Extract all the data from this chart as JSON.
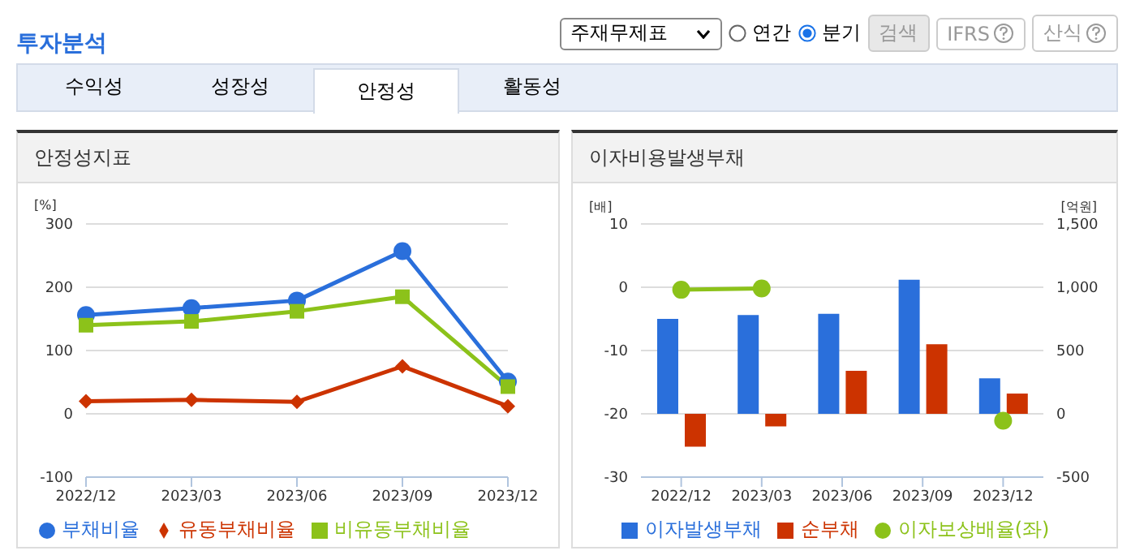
{
  "chart_data": [
    {
      "type": "other",
      "title": "투자분석",
      "annotations": [
        "주재무제표",
        "연간",
        "분기",
        "검색",
        "IFRS",
        "산식",
        "수익성",
        "성장성",
        "안정성",
        "활동성"
      ]
    },
    {
      "type": "line",
      "title": "안정성지표",
      "ylabel": "[%]",
      "categories": [
        "2022/12",
        "2023/03",
        "2023/06",
        "2023/09",
        "2023/12"
      ],
      "ylim": [
        -100,
        300
      ],
      "yticks": [
        -100,
        0,
        100,
        200,
        300
      ],
      "grid": "y",
      "legend": "bottom",
      "series": [
        {
          "name": "부채비율",
          "color": "#2a6fdb",
          "marker": "circle",
          "values": [
            156,
            167,
            179,
            257,
            51
          ]
        },
        {
          "name": "유동부채비율",
          "color": "#cc3300",
          "marker": "diamond",
          "values": [
            20,
            22,
            19,
            75,
            12
          ]
        },
        {
          "name": "비유동부채비율",
          "color": "#8cc21a",
          "marker": "square",
          "values": [
            140,
            146,
            162,
            185,
            43
          ]
        }
      ]
    },
    {
      "type": "bar",
      "title": "이자비용발생부채",
      "ylabel": "[배]",
      "y2label": "[억원]",
      "categories": [
        "2022/12",
        "2023/03",
        "2023/06",
        "2023/09",
        "2023/12"
      ],
      "ylim": [
        -30,
        10
      ],
      "yticks": [
        -30,
        -20,
        -10,
        0,
        10
      ],
      "y2lim": [
        -500,
        1500
      ],
      "y2ticks": [
        -500,
        0,
        500,
        {
          "value": 1000,
          "label": "1,000"
        },
        {
          "value": 1500,
          "label": "1,500"
        }
      ],
      "grid": "y",
      "legend": "bottom",
      "series": [
        {
          "name": "이자발생부채",
          "type": "bar",
          "axis": "y2",
          "color": "#2a6fdb",
          "values": [
            750,
            780,
            790,
            1060,
            280
          ]
        },
        {
          "name": "순부채",
          "type": "bar",
          "axis": "y2",
          "color": "#cc3300",
          "values": [
            -260,
            -100,
            340,
            550,
            160
          ]
        },
        {
          "name": "이자보상배율(좌)",
          "type": "line",
          "axis": "y",
          "color": "#8cc21a",
          "marker": "circle",
          "values": [
            -0.4,
            -0.2,
            null,
            null,
            -21.1
          ]
        }
      ]
    }
  ]
}
